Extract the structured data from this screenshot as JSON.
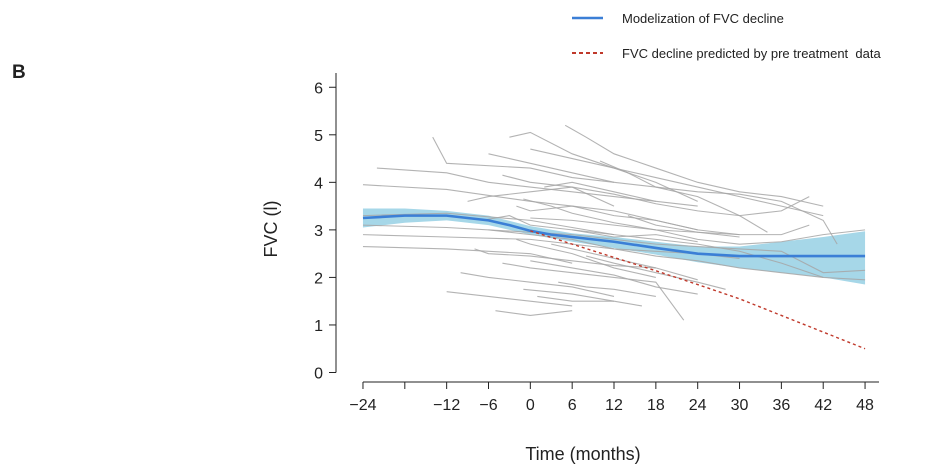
{
  "panel_label": "B",
  "chart_data": {
    "type": "line",
    "title": "",
    "xlabel": "Time (months)",
    "ylabel": "FVC (l)",
    "xlim": [
      -25,
      50
    ],
    "ylim": [
      -0.2,
      6.3
    ],
    "x_ticks": [
      -24,
      -18,
      -12,
      -6,
      0,
      6,
      12,
      18,
      24,
      30,
      36,
      42,
      48
    ],
    "x_tick_labels": [
      "−24",
      "",
      "−12",
      "−6",
      "0",
      "6",
      "12",
      "18",
      "24",
      "30",
      "36",
      "42",
      "48"
    ],
    "y_ticks": [
      0,
      1,
      2,
      3,
      4,
      5,
      6
    ],
    "y_tick_labels": [
      "0",
      "1",
      "2",
      "3",
      "4",
      "5",
      "6"
    ],
    "grid": false,
    "legend_position": "top-right",
    "colors": {
      "individual": "#a6a6a6",
      "model": "#3b7fd6",
      "confidence_band": "#a6d7e8",
      "prediction": "#c0392b"
    },
    "series": [
      {
        "name": "Modelization of FVC decline",
        "style": "solid",
        "x": [
          -24,
          -18,
          -12,
          -6,
          -3,
          0,
          3,
          6,
          12,
          18,
          24,
          30,
          36,
          42,
          48
        ],
        "y": [
          3.25,
          3.3,
          3.3,
          3.2,
          3.1,
          2.98,
          2.9,
          2.85,
          2.75,
          2.62,
          2.5,
          2.45,
          2.45,
          2.45,
          2.45
        ]
      },
      {
        "name": "FVC decline predicted by pre treatment  data",
        "style": "dashed",
        "x": [
          0,
          6,
          12,
          18,
          24,
          30,
          36,
          42,
          48
        ],
        "y": [
          2.98,
          2.7,
          2.42,
          2.14,
          1.85,
          1.55,
          1.2,
          0.85,
          0.5
        ]
      }
    ],
    "confidence_band": {
      "x": [
        -24,
        -18,
        -12,
        -6,
        0,
        6,
        12,
        18,
        24,
        30,
        36,
        42,
        48
      ],
      "lower": [
        3.05,
        3.15,
        3.2,
        3.1,
        2.9,
        2.75,
        2.62,
        2.48,
        2.32,
        2.2,
        2.1,
        2.0,
        1.85
      ],
      "upper": [
        3.45,
        3.45,
        3.4,
        3.3,
        3.08,
        2.93,
        2.85,
        2.75,
        2.65,
        2.65,
        2.75,
        2.85,
        2.97
      ]
    },
    "individual_patients": [
      [
        [
          -24,
          2.9
        ],
        [
          -12,
          2.85
        ],
        [
          0,
          2.8
        ],
        [
          6,
          2.7
        ],
        [
          12,
          2.6
        ],
        [
          18,
          2.55
        ],
        [
          24,
          2.5
        ],
        [
          30,
          2.4
        ]
      ],
      [
        [
          -24,
          3.3
        ],
        [
          -12,
          3.35
        ],
        [
          0,
          3.2
        ],
        [
          6,
          3.05
        ],
        [
          12,
          2.9
        ]
      ],
      [
        [
          -24,
          3.95
        ],
        [
          -12,
          3.85
        ],
        [
          0,
          3.6
        ],
        [
          6,
          3.5
        ],
        [
          12,
          3.4
        ],
        [
          18,
          3.2
        ],
        [
          24,
          3.0
        ]
      ],
      [
        [
          -22,
          4.3
        ],
        [
          -12,
          4.2
        ],
        [
          -6,
          4.0
        ],
        [
          0,
          3.9
        ],
        [
          6,
          3.8
        ],
        [
          12,
          3.7
        ],
        [
          18,
          3.6
        ]
      ],
      [
        [
          -24,
          2.65
        ],
        [
          -12,
          2.6
        ],
        [
          0,
          2.5
        ],
        [
          6,
          2.3
        ]
      ],
      [
        [
          -24,
          3.1
        ],
        [
          -12,
          3.05
        ],
        [
          0,
          2.95
        ],
        [
          6,
          2.9
        ],
        [
          12,
          2.8
        ],
        [
          18,
          2.7
        ],
        [
          24,
          2.65
        ],
        [
          30,
          2.6
        ],
        [
          36,
          2.55
        ],
        [
          42,
          2.1
        ],
        [
          48,
          2.15
        ]
      ],
      [
        [
          -14,
          4.95
        ],
        [
          -12,
          4.4
        ],
        [
          0,
          4.3
        ],
        [
          6,
          4.1
        ],
        [
          12,
          4.0
        ],
        [
          18,
          3.9
        ],
        [
          24,
          3.8
        ],
        [
          30,
          3.75
        ],
        [
          36,
          3.6
        ],
        [
          42,
          3.2
        ],
        [
          44,
          2.7
        ]
      ],
      [
        [
          -12,
          1.7
        ],
        [
          -6,
          1.6
        ],
        [
          0,
          1.5
        ],
        [
          6,
          1.4
        ]
      ],
      [
        [
          -10,
          2.1
        ],
        [
          -6,
          2.0
        ],
        [
          0,
          1.9
        ],
        [
          6,
          1.8
        ],
        [
          12,
          1.6
        ]
      ],
      [
        [
          -9,
          3.6
        ],
        [
          -6,
          3.7
        ],
        [
          0,
          3.8
        ],
        [
          6,
          3.9
        ],
        [
          12,
          3.5
        ]
      ],
      [
        [
          -8,
          2.6
        ],
        [
          -6,
          2.5
        ],
        [
          0,
          2.45
        ],
        [
          6,
          2.35
        ],
        [
          12,
          2.25
        ],
        [
          18,
          2.2
        ],
        [
          24,
          1.95
        ]
      ],
      [
        [
          -7,
          3.2
        ],
        [
          -3,
          3.3
        ],
        [
          0,
          3.1
        ],
        [
          6,
          3.0
        ],
        [
          12,
          2.9
        ],
        [
          18,
          2.8
        ],
        [
          24,
          2.7
        ],
        [
          30,
          2.55
        ],
        [
          36,
          2.3
        ],
        [
          42,
          2.0
        ]
      ],
      [
        [
          -6,
          4.6
        ],
        [
          -3,
          4.5
        ],
        [
          0,
          4.4
        ],
        [
          6,
          4.2
        ],
        [
          12,
          4.0
        ]
      ],
      [
        [
          -5,
          1.3
        ],
        [
          0,
          1.2
        ],
        [
          6,
          1.3
        ]
      ],
      [
        [
          -4,
          2.3
        ],
        [
          0,
          2.2
        ],
        [
          6,
          2.1
        ],
        [
          12,
          2.0
        ],
        [
          18,
          1.9
        ],
        [
          22,
          1.1
        ]
      ],
      [
        [
          -3,
          4.95
        ],
        [
          0,
          5.05
        ],
        [
          6,
          4.6
        ],
        [
          12,
          4.3
        ],
        [
          18,
          4.0
        ],
        [
          24,
          3.6
        ]
      ],
      [
        [
          -2,
          2.8
        ],
        [
          0,
          2.7
        ],
        [
          6,
          2.5
        ],
        [
          12,
          2.2
        ],
        [
          18,
          2.0
        ]
      ],
      [
        [
          -2,
          3.5
        ],
        [
          0,
          3.4
        ],
        [
          6,
          3.5
        ],
        [
          12,
          3.3
        ],
        [
          18,
          3.2
        ],
        [
          24,
          3.0
        ],
        [
          30,
          2.9
        ]
      ],
      [
        [
          0,
          4.7
        ],
        [
          6,
          4.5
        ],
        [
          12,
          4.3
        ],
        [
          18,
          4.1
        ],
        [
          24,
          3.9
        ],
        [
          30,
          3.7
        ],
        [
          36,
          3.5
        ],
        [
          42,
          3.3
        ]
      ],
      [
        [
          0,
          2.35
        ],
        [
          6,
          2.2
        ],
        [
          12,
          2.05
        ],
        [
          18,
          1.8
        ],
        [
          24,
          1.65
        ]
      ],
      [
        [
          1,
          1.6
        ],
        [
          6,
          1.5
        ],
        [
          12,
          1.5
        ]
      ],
      [
        [
          2,
          3.9
        ],
        [
          6,
          4.0
        ],
        [
          12,
          3.8
        ],
        [
          18,
          3.6
        ],
        [
          24,
          3.5
        ]
      ],
      [
        [
          3,
          2.7
        ],
        [
          6,
          2.6
        ],
        [
          12,
          2.4
        ],
        [
          18,
          2.2
        ]
      ],
      [
        [
          -1,
          3.65
        ],
        [
          3,
          3.5
        ],
        [
          6,
          3.35
        ],
        [
          12,
          3.15
        ],
        [
          18,
          3.0
        ],
        [
          24,
          2.95
        ],
        [
          30,
          2.9
        ],
        [
          36,
          2.9
        ],
        [
          40,
          3.1
        ]
      ],
      [
        [
          4,
          1.9
        ],
        [
          8,
          1.8
        ],
        [
          12,
          1.75
        ],
        [
          18,
          1.6
        ]
      ],
      [
        [
          5,
          5.2
        ],
        [
          8,
          4.95
        ],
        [
          12,
          4.6
        ],
        [
          18,
          4.3
        ],
        [
          24,
          4.0
        ],
        [
          30,
          3.8
        ],
        [
          36,
          3.7
        ],
        [
          42,
          3.5
        ]
      ],
      [
        [
          6,
          3.0
        ],
        [
          12,
          2.85
        ],
        [
          18,
          2.9
        ],
        [
          24,
          2.75
        ]
      ],
      [
        [
          8,
          2.45
        ],
        [
          12,
          2.3
        ],
        [
          18,
          2.1
        ],
        [
          24,
          1.9
        ],
        [
          28,
          1.75
        ]
      ],
      [
        [
          10,
          4.45
        ],
        [
          14,
          4.2
        ],
        [
          18,
          3.9
        ],
        [
          24,
          3.7
        ],
        [
          30,
          3.3
        ],
        [
          34,
          2.95
        ]
      ],
      [
        [
          -4,
          4.15
        ],
        [
          0,
          4.0
        ],
        [
          6,
          3.9
        ],
        [
          12,
          3.75
        ],
        [
          18,
          3.55
        ],
        [
          24,
          3.4
        ],
        [
          30,
          3.3
        ],
        [
          36,
          3.4
        ],
        [
          40,
          3.7
        ]
      ],
      [
        [
          -6,
          3.0
        ],
        [
          0,
          2.9
        ],
        [
          6,
          2.8
        ],
        [
          12,
          2.6
        ],
        [
          18,
          2.45
        ],
        [
          24,
          2.35
        ],
        [
          30,
          2.2
        ],
        [
          36,
          2.1
        ],
        [
          42,
          2.0
        ],
        [
          48,
          1.95
        ]
      ],
      [
        [
          14,
          3.3
        ],
        [
          18,
          3.1
        ],
        [
          24,
          2.95
        ],
        [
          30,
          2.85
        ]
      ],
      [
        [
          -1,
          1.75
        ],
        [
          6,
          1.65
        ],
        [
          12,
          1.5
        ],
        [
          16,
          1.4
        ]
      ],
      [
        [
          0,
          3.25
        ],
        [
          6,
          3.2
        ],
        [
          12,
          3.1
        ],
        [
          18,
          3.0
        ],
        [
          24,
          2.8
        ],
        [
          30,
          2.7
        ],
        [
          36,
          2.75
        ],
        [
          42,
          2.9
        ],
        [
          48,
          3.0
        ]
      ]
    ]
  }
}
